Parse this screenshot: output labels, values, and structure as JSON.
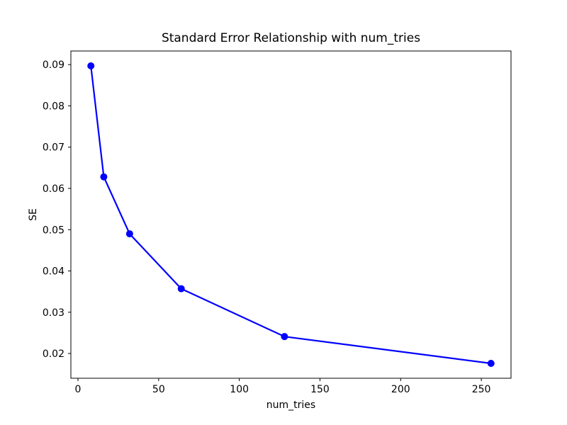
{
  "chart_data": {
    "type": "line",
    "title": "Standard Error Relationship with num_tries",
    "xlabel": "num_tries",
    "ylabel": "SE",
    "x": [
      8,
      16,
      32,
      64,
      128,
      256
    ],
    "y": [
      0.0897,
      0.0628,
      0.049,
      0.0357,
      0.0241,
      0.0176
    ],
    "line_color": "#0000ff",
    "marker": "circle",
    "marker_color": "#0000ff",
    "xlim": [
      -4.4,
      268.4
    ],
    "ylim": [
      0.014,
      0.0933
    ],
    "xticks": [
      0,
      50,
      100,
      150,
      200,
      250
    ],
    "xtick_labels": [
      "0",
      "50",
      "100",
      "150",
      "200",
      "250"
    ],
    "yticks": [
      0.02,
      0.03,
      0.04,
      0.05,
      0.06,
      0.07,
      0.08,
      0.09
    ],
    "ytick_labels": [
      "0.02",
      "0.03",
      "0.04",
      "0.05",
      "0.06",
      "0.07",
      "0.08",
      "0.09"
    ],
    "grid": false,
    "legend": false,
    "background": "#ffffff",
    "axes_color": "#000000",
    "text_color": "#000000"
  }
}
